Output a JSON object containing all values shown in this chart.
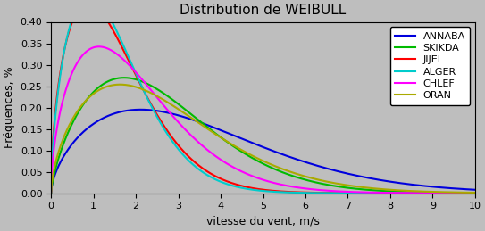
{
  "title": "Distribution de WEIBULL",
  "xlabel": "vitesse du vent, m/s",
  "ylabel": "Fréquences, %",
  "xlim": [
    0,
    10
  ],
  "ylim": [
    0,
    0.4
  ],
  "background_color": "#bebebe",
  "cities": [
    {
      "name": "ANNABA",
      "color": "#0000dd",
      "k": 1.6,
      "lam": 3.9
    },
    {
      "name": "SKIKDA",
      "color": "#00bb00",
      "k": 1.7,
      "lam": 2.9
    },
    {
      "name": "JIJEL",
      "color": "#ff0000",
      "k": 1.55,
      "lam": 1.7
    },
    {
      "name": "ALGER",
      "color": "#00cccc",
      "k": 1.6,
      "lam": 1.65
    },
    {
      "name": "CHLEF",
      "color": "#ff00ff",
      "k": 1.55,
      "lam": 2.2
    },
    {
      "name": "ORAN",
      "color": "#aaaa00",
      "k": 1.6,
      "lam": 3.0
    }
  ],
  "xticks": [
    0,
    1,
    2,
    3,
    4,
    5,
    6,
    7,
    8,
    9,
    10
  ],
  "yticks": [
    0,
    0.05,
    0.1,
    0.15,
    0.2,
    0.25,
    0.3,
    0.35,
    0.4
  ],
  "title_fontsize": 11,
  "label_fontsize": 9,
  "tick_fontsize": 8,
  "legend_fontsize": 8,
  "linewidth": 1.5,
  "figwidth": 5.43,
  "figheight": 2.59,
  "dpi": 100
}
